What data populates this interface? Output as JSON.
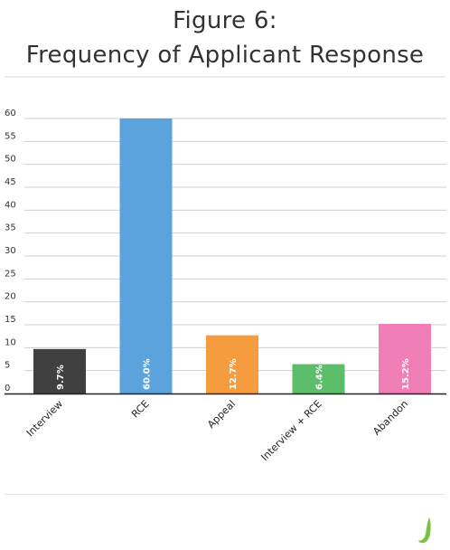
{
  "chart_data": {
    "type": "bar",
    "title": "Figure 6:",
    "subtitle": "Frequency of Applicant Response",
    "categories": [
      "Interview",
      "RCE",
      "Appeal",
      "Interview + RCE",
      "Abandon"
    ],
    "values": [
      9.7,
      60.0,
      12.7,
      6.4,
      15.2
    ],
    "data_labels": [
      "9.7%",
      "60.0%",
      "12.7%",
      "6.4%",
      "15.2%"
    ],
    "colors": [
      "#404040",
      "#5ba3dc",
      "#f59c3f",
      "#5cbd6a",
      "#ef7fb6"
    ],
    "xlabel": "",
    "ylabel": "",
    "ylim": [
      0,
      60
    ],
    "yticks": [
      0,
      5,
      10,
      15,
      20,
      25,
      30,
      35,
      40,
      45,
      50,
      55,
      60
    ],
    "grid": true,
    "legend": "none"
  },
  "logo": {
    "icon": "j-leaf-logo-icon",
    "color": "#7cc242"
  }
}
